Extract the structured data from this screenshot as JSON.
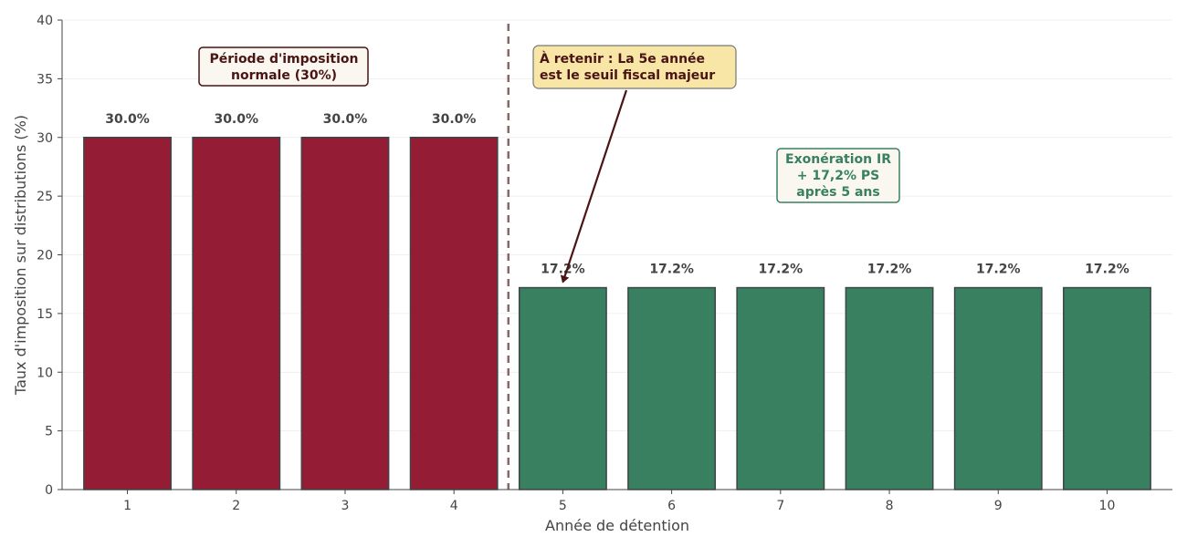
{
  "chart_data": {
    "type": "bar",
    "xlabel": "Année de détention",
    "ylabel": "Taux d'imposition sur distributions (%)",
    "ylim": [
      0,
      40
    ],
    "yticks": [
      0,
      5,
      10,
      15,
      20,
      25,
      30,
      35,
      40
    ],
    "categories": [
      "1",
      "2",
      "3",
      "4",
      "5",
      "6",
      "7",
      "8",
      "9",
      "10"
    ],
    "values": [
      30.0,
      30.0,
      30.0,
      30.0,
      17.2,
      17.2,
      17.2,
      17.2,
      17.2,
      17.2
    ],
    "value_labels": [
      "30.0%",
      "30.0%",
      "30.0%",
      "30.0%",
      "17.2%",
      "17.2%",
      "17.2%",
      "17.2%",
      "17.2%",
      "17.2%"
    ],
    "bar_colors": [
      "#951c35",
      "#951c35",
      "#951c35",
      "#951c35",
      "#388060",
      "#388060",
      "#388060",
      "#388060",
      "#388060",
      "#388060"
    ],
    "grid": "horizontal",
    "threshold_line_x": 4.5,
    "threshold_line_color": "#8a6767",
    "annotations": {
      "normal_period": {
        "lines": [
          "Période d'imposition",
          "normale (30%)"
        ],
        "text_color": "#4a1414",
        "border_color": "#4a1414",
        "background": "#faf7f0"
      },
      "key_point": {
        "lines": [
          "À retenir : La 5e année",
          "est le seuil fiscal majeur"
        ],
        "text_color": "#4a1414",
        "border_color": "#777777",
        "background": "#f7e6a6",
        "arrow_target": [
          5,
          17.2
        ]
      },
      "exemption": {
        "lines": [
          "Exonération IR",
          "+ 17,2% PS",
          "après 5 ans"
        ],
        "text_color": "#388060",
        "border_color": "#388060",
        "background": "#faf7f0"
      }
    }
  }
}
